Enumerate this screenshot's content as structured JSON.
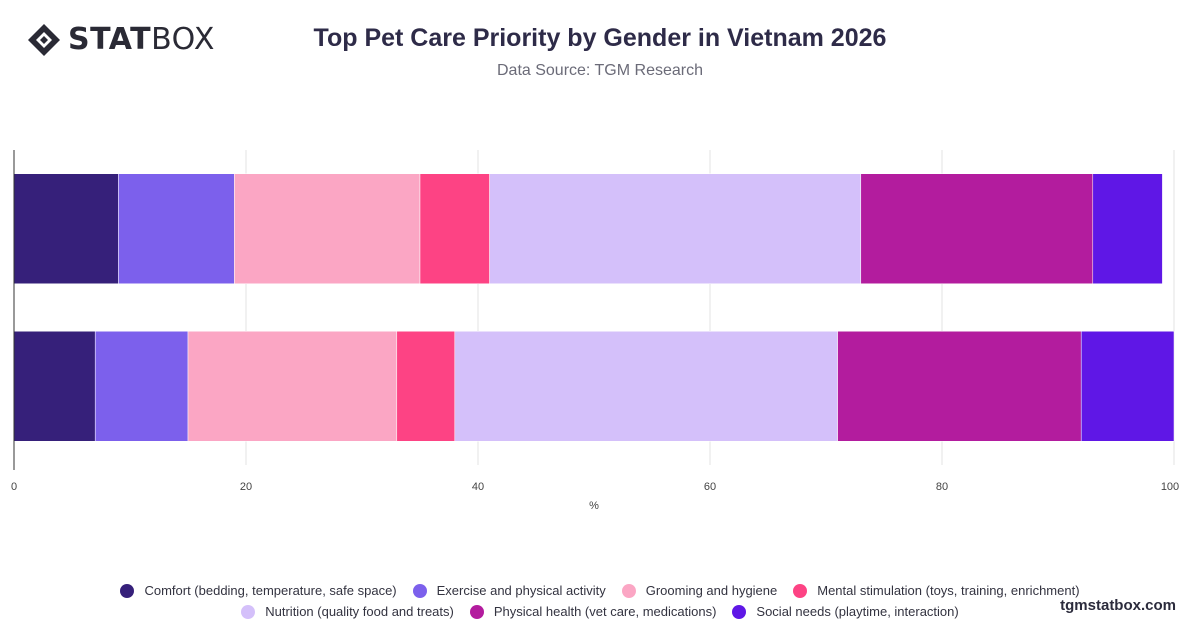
{
  "brand": {
    "logo_bold": "STAT",
    "logo_light": "BOX",
    "watermark": "tgmstatbox.com"
  },
  "header": {
    "title": "Top Pet Care Priority by Gender in Vietnam 2026",
    "subtitle": "Data Source: TGM Research"
  },
  "chart_data": {
    "type": "bar",
    "orientation": "horizontal",
    "stacked": true,
    "title": "Top Pet Care Priority by Gender in Vietnam 2026",
    "subtitle": "Data Source: TGM Research",
    "xlabel": "%",
    "ylabel": "",
    "xlim": [
      0,
      100
    ],
    "xticks": [
      0,
      20,
      40,
      60,
      80,
      100
    ],
    "grid": true,
    "legend_position": "bottom",
    "categories": [
      "",
      ""
    ],
    "series": [
      {
        "name": "Comfort (bedding, temperature, safe space)",
        "color": "#36207a",
        "values": [
          9,
          7
        ]
      },
      {
        "name": "Exercise and physical activity",
        "color": "#7c60ec",
        "values": [
          10,
          8
        ]
      },
      {
        "name": "Grooming and hygiene",
        "color": "#fba6c4",
        "values": [
          16,
          18
        ]
      },
      {
        "name": "Mental stimulation (toys, training, enrichment)",
        "color": "#fd4384",
        "values": [
          6,
          5
        ]
      },
      {
        "name": "Nutrition (quality food and treats)",
        "color": "#d4c0fa",
        "values": [
          32,
          33
        ]
      },
      {
        "name": "Physical health (vet care, medications)",
        "color": "#b31c9e",
        "values": [
          20,
          21
        ]
      },
      {
        "name": "Social needs (playtime, interaction)",
        "color": "#5f17e6",
        "values": [
          6,
          8
        ]
      }
    ]
  }
}
